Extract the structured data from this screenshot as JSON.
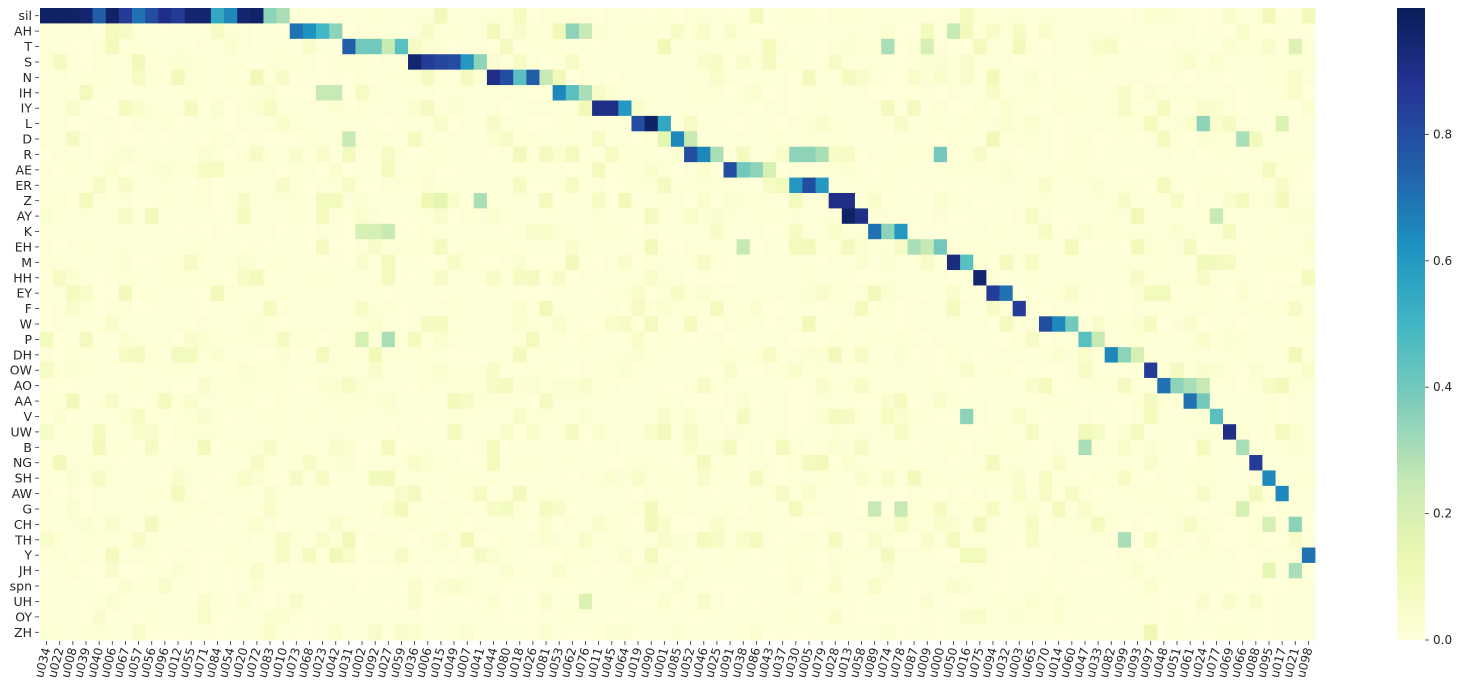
{
  "chart_data": {
    "type": "heatmap",
    "title": "",
    "xlabel": "",
    "ylabel": "",
    "rows": [
      "sil",
      "AH",
      "T",
      "S",
      "N",
      "IH",
      "IY",
      "L",
      "D",
      "R",
      "AE",
      "ER",
      "Z",
      "AY",
      "K",
      "EH",
      "M",
      "HH",
      "EY",
      "F",
      "W",
      "P",
      "DH",
      "OW",
      "AO",
      "AA",
      "V",
      "UW",
      "B",
      "NG",
      "SH",
      "AW",
      "G",
      "CH",
      "TH",
      "Y",
      "JH",
      "spn",
      "UH",
      "OY",
      "ZH"
    ],
    "cols": [
      "u034",
      "u022",
      "u008",
      "u039",
      "u040",
      "u006",
      "u067",
      "u057",
      "u056",
      "u096",
      "u012",
      "u055",
      "u071",
      "u084",
      "u054",
      "u020",
      "u072",
      "u083",
      "u010",
      "u073",
      "u068",
      "u023",
      "u042",
      "u031",
      "u002",
      "u092",
      "u027",
      "u059",
      "u036",
      "u006",
      "u015",
      "u049",
      "u007",
      "u041",
      "u044",
      "u080",
      "u018",
      "u026",
      "u081",
      "u053",
      "u062",
      "u076",
      "u011",
      "u045",
      "u064",
      "u019",
      "u090",
      "u001",
      "u085",
      "u052",
      "u046",
      "u025",
      "u091",
      "u038",
      "u086",
      "u043",
      "u037",
      "u030",
      "u005",
      "u079",
      "u028",
      "u013",
      "u058",
      "u089",
      "u074",
      "u078",
      "u087",
      "u009",
      "u000",
      "u050",
      "u016",
      "u075",
      "u094",
      "u032",
      "u003",
      "u065",
      "u070",
      "u014",
      "u060",
      "u047",
      "u033",
      "u082",
      "u099",
      "u093",
      "u097",
      "u048",
      "u051",
      "u061",
      "u024",
      "u077",
      "u069",
      "u066",
      "u088",
      "u095",
      "u017",
      "u021",
      "u098"
    ],
    "x_ticks_shown": [
      "u034",
      "u022",
      "u008",
      "u039",
      "u040",
      "u006",
      "u067",
      "u057",
      "u056",
      "u096",
      "u012",
      "u055",
      "u071",
      "u084",
      "u054",
      "u020",
      "u072",
      "u083",
      "u010",
      "u073",
      "u068",
      "u023",
      "u042",
      "u031",
      "u002",
      "u092",
      "u027",
      "u059",
      "u036",
      "u006",
      "u015",
      "u049",
      "u007",
      "u041",
      "u044",
      "u080",
      "u018",
      "u026",
      "u081",
      "u053",
      "u062",
      "u076",
      "u011",
      "u045",
      "u064",
      "u019",
      "u090",
      "u001",
      "u085",
      "u052",
      "u046",
      "u025",
      "u091",
      "u038",
      "u086",
      "u043",
      "u037",
      "u030",
      "u005",
      "u079",
      "u028",
      "u013",
      "u058",
      "u089",
      "u074",
      "u078",
      "u087",
      "u009",
      "u000",
      "u050",
      "u016",
      "u075",
      "u094",
      "u032",
      "u003",
      "u065",
      "u070",
      "u014",
      "u060",
      "u047",
      "u033",
      "u082",
      "u099",
      "u093",
      "u097",
      "u048",
      "u051",
      "u061",
      "u024",
      "u077",
      "u069",
      "u066",
      "u088",
      "u095",
      "u017",
      "u021",
      "u098"
    ],
    "background_value": 0.02,
    "cells": [
      [
        0,
        0,
        0.97
      ],
      [
        0,
        1,
        0.97
      ],
      [
        0,
        2,
        0.97
      ],
      [
        0,
        3,
        0.95
      ],
      [
        0,
        4,
        0.75
      ],
      [
        0,
        5,
        0.97
      ],
      [
        0,
        6,
        0.85
      ],
      [
        0,
        7,
        0.7
      ],
      [
        0,
        8,
        0.8
      ],
      [
        0,
        9,
        0.9
      ],
      [
        0,
        10,
        0.85
      ],
      [
        0,
        11,
        0.95
      ],
      [
        0,
        12,
        0.95
      ],
      [
        0,
        13,
        0.55
      ],
      [
        0,
        14,
        0.65
      ],
      [
        0,
        15,
        0.95
      ],
      [
        0,
        16,
        0.97
      ],
      [
        0,
        17,
        0.35
      ],
      [
        0,
        18,
        0.3
      ],
      [
        1,
        19,
        0.7
      ],
      [
        1,
        20,
        0.62
      ],
      [
        1,
        21,
        0.5
      ],
      [
        1,
        22,
        0.35
      ],
      [
        1,
        40,
        0.35
      ],
      [
        1,
        41,
        0.25
      ],
      [
        1,
        69,
        0.25
      ],
      [
        2,
        23,
        0.75
      ],
      [
        2,
        24,
        0.4
      ],
      [
        2,
        25,
        0.4
      ],
      [
        2,
        26,
        0.25
      ],
      [
        2,
        27,
        0.45
      ],
      [
        2,
        64,
        0.3
      ],
      [
        2,
        67,
        0.2
      ],
      [
        2,
        95,
        0.18
      ],
      [
        3,
        28,
        0.95
      ],
      [
        3,
        29,
        0.85
      ],
      [
        3,
        30,
        0.82
      ],
      [
        3,
        31,
        0.8
      ],
      [
        3,
        32,
        0.6
      ],
      [
        3,
        33,
        0.35
      ],
      [
        4,
        34,
        0.9
      ],
      [
        4,
        35,
        0.8
      ],
      [
        4,
        36,
        0.45
      ],
      [
        4,
        37,
        0.75
      ],
      [
        4,
        38,
        0.25
      ],
      [
        5,
        21,
        0.25
      ],
      [
        5,
        22,
        0.25
      ],
      [
        5,
        39,
        0.65
      ],
      [
        5,
        40,
        0.45
      ],
      [
        5,
        41,
        0.3
      ],
      [
        6,
        42,
        0.9
      ],
      [
        6,
        43,
        0.9
      ],
      [
        6,
        44,
        0.6
      ],
      [
        7,
        45,
        0.8
      ],
      [
        7,
        46,
        0.97
      ],
      [
        7,
        47,
        0.55
      ],
      [
        7,
        88,
        0.35
      ],
      [
        7,
        94,
        0.18
      ],
      [
        8,
        23,
        0.25
      ],
      [
        8,
        47,
        0.15
      ],
      [
        8,
        48,
        0.65
      ],
      [
        8,
        49,
        0.25
      ],
      [
        8,
        91,
        0.3
      ],
      [
        9,
        49,
        0.8
      ],
      [
        9,
        50,
        0.65
      ],
      [
        9,
        51,
        0.3
      ],
      [
        9,
        57,
        0.35
      ],
      [
        9,
        58,
        0.35
      ],
      [
        9,
        59,
        0.3
      ],
      [
        9,
        68,
        0.4
      ],
      [
        10,
        52,
        0.8
      ],
      [
        10,
        53,
        0.4
      ],
      [
        10,
        54,
        0.35
      ],
      [
        10,
        55,
        0.2
      ],
      [
        11,
        57,
        0.6
      ],
      [
        11,
        58,
        0.8
      ],
      [
        11,
        59,
        0.6
      ],
      [
        12,
        60,
        0.9
      ],
      [
        12,
        61,
        0.9
      ],
      [
        12,
        33,
        0.3
      ],
      [
        12,
        29,
        0.12
      ],
      [
        12,
        30,
        0.15
      ],
      [
        13,
        61,
        0.97
      ],
      [
        13,
        62,
        0.9
      ],
      [
        13,
        89,
        0.25
      ],
      [
        14,
        63,
        0.7
      ],
      [
        14,
        64,
        0.35
      ],
      [
        14,
        65,
        0.6
      ],
      [
        14,
        24,
        0.2
      ],
      [
        14,
        25,
        0.2
      ],
      [
        14,
        26,
        0.25
      ],
      [
        15,
        53,
        0.25
      ],
      [
        15,
        66,
        0.3
      ],
      [
        15,
        67,
        0.25
      ],
      [
        15,
        68,
        0.4
      ],
      [
        16,
        69,
        0.92
      ],
      [
        16,
        70,
        0.45
      ],
      [
        17,
        71,
        0.95
      ],
      [
        18,
        72,
        0.85
      ],
      [
        18,
        73,
        0.7
      ],
      [
        19,
        74,
        0.85
      ],
      [
        20,
        76,
        0.8
      ],
      [
        20,
        77,
        0.65
      ],
      [
        20,
        78,
        0.4
      ],
      [
        21,
        79,
        0.45
      ],
      [
        21,
        80,
        0.25
      ],
      [
        21,
        26,
        0.3
      ],
      [
        21,
        24,
        0.2
      ],
      [
        22,
        81,
        0.65
      ],
      [
        22,
        82,
        0.35
      ],
      [
        22,
        83,
        0.2
      ],
      [
        23,
        84,
        0.85
      ],
      [
        24,
        85,
        0.7
      ],
      [
        24,
        86,
        0.35
      ],
      [
        24,
        87,
        0.3
      ],
      [
        24,
        88,
        0.25
      ],
      [
        25,
        87,
        0.7
      ],
      [
        25,
        88,
        0.4
      ],
      [
        26,
        70,
        0.35
      ],
      [
        26,
        89,
        0.45
      ],
      [
        27,
        90,
        0.9
      ],
      [
        28,
        79,
        0.3
      ],
      [
        28,
        91,
        0.3
      ],
      [
        29,
        92,
        0.85
      ],
      [
        30,
        93,
        0.65
      ],
      [
        31,
        94,
        0.65
      ],
      [
        32,
        63,
        0.25
      ],
      [
        32,
        65,
        0.25
      ],
      [
        32,
        91,
        0.2
      ],
      [
        33,
        93,
        0.2
      ],
      [
        33,
        95,
        0.35
      ],
      [
        34,
        82,
        0.3
      ],
      [
        35,
        96,
        0.7
      ],
      [
        36,
        95,
        0.3
      ],
      [
        36,
        93,
        0.15
      ],
      [
        38,
        41,
        0.18
      ],
      [
        40,
        84,
        0.12
      ]
    ],
    "value_range": [
      0,
      1
    ],
    "colorbar_ticks": [
      "0.0",
      "0.2",
      "0.4",
      "0.6",
      "0.8"
    ],
    "colormap": "YlGnBu"
  }
}
